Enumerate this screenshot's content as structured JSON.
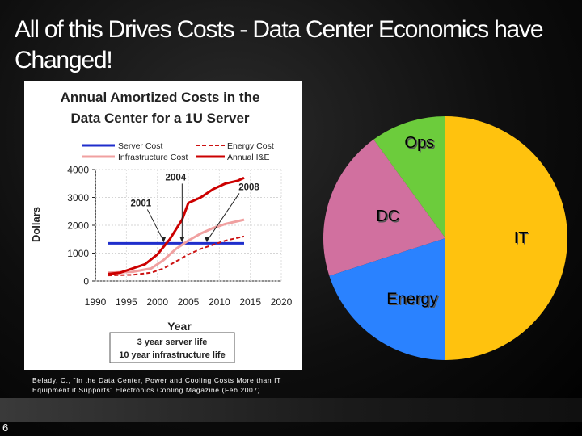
{
  "slide": {
    "title_line1": "All of this Drives Costs - Data Center Economics have",
    "title_line2": "Changed!",
    "number": "6",
    "citation_line1": "Belady, C., \"In the Data Center, Power and Cooling Costs More than IT",
    "citation_line2": "Equipment it Supports\"   Electronics Cooling Magazine (Feb 2007)"
  },
  "colors": {
    "server": "#1f2ecc",
    "energy": "#cc1111",
    "infrastructure": "#f0a0a0",
    "annual": "#cc0000",
    "ops": "#6ccc3c",
    "dc": "#d1709f",
    "energy_slice": "#2a82ff",
    "it": "#ffc20e"
  },
  "chart_data": [
    {
      "type": "line",
      "title_line1": "Annual Amortized Costs in the",
      "title_line2": "Data Center for a 1U Server",
      "xlabel": "Year",
      "ylabel": "Dollars",
      "xlim": [
        1990,
        2020
      ],
      "ylim": [
        0,
        4000
      ],
      "xticks": [
        "1990",
        "1995",
        "2000",
        "2005",
        "2010",
        "2015",
        "2020"
      ],
      "yticks": [
        "0",
        "1000",
        "2000",
        "3000",
        "4000"
      ],
      "legend": [
        "Server Cost",
        "Energy Cost",
        "Infrastructure Cost",
        "Annual I&E"
      ],
      "series": [
        {
          "name": "Server Cost",
          "style": "solid",
          "x": [
            1992,
            2014
          ],
          "values": [
            1350,
            1350
          ]
        },
        {
          "name": "Energy Cost",
          "style": "dashed",
          "x": [
            1992,
            1996,
            1999,
            2001,
            2003,
            2005,
            2007,
            2009,
            2011,
            2014
          ],
          "values": [
            200,
            220,
            300,
            450,
            700,
            950,
            1150,
            1300,
            1450,
            1600
          ]
        },
        {
          "name": "Infrastructure Cost",
          "style": "solid",
          "x": [
            1992,
            1996,
            1999,
            2001,
            2003,
            2005,
            2007,
            2009,
            2011,
            2014
          ],
          "values": [
            300,
            330,
            450,
            750,
            1150,
            1450,
            1700,
            1900,
            2050,
            2200
          ]
        },
        {
          "name": "Annual I&E",
          "style": "solid",
          "x": [
            1992,
            1994,
            1996,
            1998,
            2000,
            2002,
            2004,
            2005,
            2007,
            2009,
            2011,
            2013,
            2014
          ],
          "values": [
            250,
            300,
            450,
            600,
            950,
            1500,
            2200,
            2800,
            3000,
            3300,
            3500,
            3600,
            3700
          ]
        }
      ],
      "annotations": [
        {
          "label": "2001",
          "x": 2001,
          "y": 1350
        },
        {
          "label": "2004",
          "x": 2004,
          "y": 1350
        },
        {
          "label": "2008",
          "x": 2008,
          "y": 1350
        }
      ],
      "note_line1": "3 year server life",
      "note_line2": "10 year infrastructure life"
    },
    {
      "type": "pie",
      "labels": [
        "Ops",
        "DC",
        "Energy",
        "IT"
      ],
      "values": [
        10,
        20,
        20,
        50
      ]
    }
  ]
}
